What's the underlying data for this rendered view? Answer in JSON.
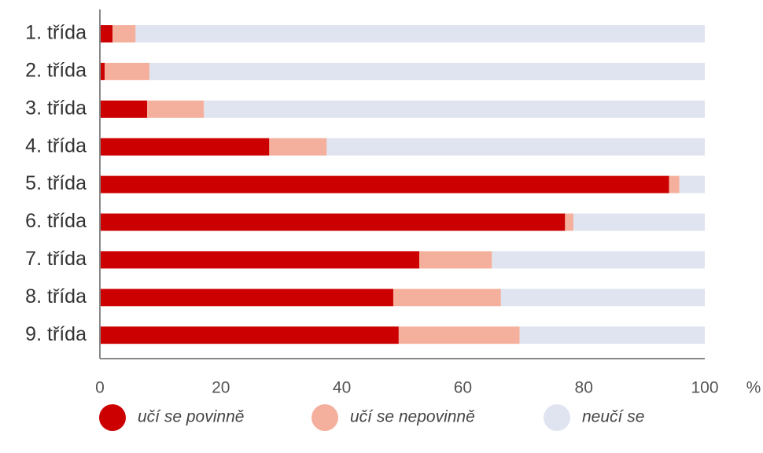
{
  "chart_data": {
    "type": "stacked-bar-horizontal",
    "categories": [
      "1. třída",
      "2. třída",
      "3. třída",
      "4. třída",
      "5. třída",
      "6. třída",
      "7. třída",
      "8. třída",
      "9. třída"
    ],
    "series": [
      {
        "name": "učí se povinně",
        "color": "#cc0000",
        "values": [
          2.1,
          0.8,
          7.8,
          28.0,
          94.1,
          76.9,
          52.8,
          48.5,
          49.4
        ]
      },
      {
        "name": "učí se nepovinně",
        "color": "#f4b09c",
        "values": [
          3.8,
          7.4,
          9.4,
          9.5,
          1.7,
          1.4,
          12.0,
          17.8,
          20.0
        ]
      },
      {
        "name": "neučí se",
        "color": "#dfe4f0",
        "values": [
          94.1,
          91.8,
          82.8,
          62.5,
          4.2,
          21.7,
          35.2,
          33.7,
          30.6
        ]
      }
    ],
    "x_label": "%",
    "xlim": [
      0,
      100
    ],
    "xticks": [
      0,
      20,
      40,
      60,
      80,
      100
    ],
    "grid": false
  }
}
